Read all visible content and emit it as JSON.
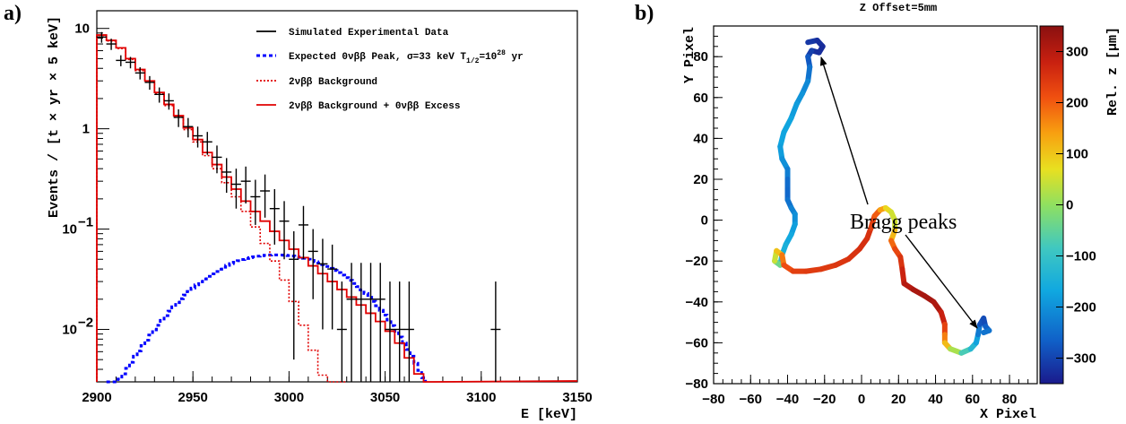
{
  "panels": {
    "a_label": "a)",
    "b_label": "b)"
  },
  "chart_data": [
    {
      "type": "line",
      "panel": "a",
      "xlabel": "E [keV]",
      "ylabel": "Events / [t × yr × 5 keV]",
      "xlim": [
        2900,
        3150
      ],
      "ylim": [
        0.003,
        15
      ],
      "yscale": "log",
      "xticks": [
        2900,
        2950,
        3000,
        3050,
        3100,
        3150
      ],
      "yticks": [
        {
          "value": 10,
          "label": "10"
        },
        {
          "value": 1,
          "label": "1"
        },
        {
          "value": 0.1,
          "label": "10",
          "exp": "−1"
        },
        {
          "value": 0.01,
          "label": "10",
          "exp": "−2"
        }
      ],
      "legend_position": "top-right",
      "legend": [
        {
          "name": "Simulated Experimental Data",
          "color": "#000000",
          "style": "solid"
        },
        {
          "name": "Expected 0νββ Peak, σ=33 keV T",
          "sub": "1/2",
          "mid": "=10",
          "sup": "28",
          "tail": " yr",
          "color": "#0000ff",
          "style": "dashed"
        },
        {
          "name": "2νββ Background",
          "color": "#e00000",
          "style": "dotted"
        },
        {
          "name": "2νββ Background + 0νββ Excess",
          "color": "#e00000",
          "style": "solid"
        }
      ],
      "series": [
        {
          "name": "2νββ Background + 0νββ Excess",
          "color": "#e00000",
          "binwidth": 5,
          "x": [
            2900,
            2905,
            2910,
            2915,
            2920,
            2925,
            2930,
            2935,
            2940,
            2945,
            2950,
            2955,
            2960,
            2965,
            2970,
            2975,
            2980,
            2985,
            2990,
            2995,
            3000,
            3005,
            3010,
            3015,
            3020,
            3025,
            3030,
            3035,
            3040,
            3045,
            3050,
            3055,
            3060,
            3065,
            3070
          ],
          "values": [
            8.6,
            7.6,
            6.4,
            5.0,
            3.9,
            3.0,
            2.3,
            1.75,
            1.35,
            1.02,
            0.78,
            0.58,
            0.44,
            0.33,
            0.25,
            0.19,
            0.15,
            0.12,
            0.095,
            0.077,
            0.063,
            0.052,
            0.043,
            0.036,
            0.03,
            0.025,
            0.021,
            0.0175,
            0.0145,
            0.012,
            0.0096,
            0.0073,
            0.0052,
            0.0036,
            0.0024
          ]
        },
        {
          "name": "2νββ Background",
          "color": "#e00000",
          "binwidth": 5,
          "x": [
            2900,
            2905,
            2910,
            2915,
            2920,
            2925,
            2930,
            2935,
            2940,
            2945,
            2950,
            2955,
            2960,
            2965,
            2970,
            2975,
            2980,
            2985,
            2990,
            2995,
            3000,
            3005,
            3010,
            3015,
            3020,
            3025
          ],
          "values": [
            8.5,
            7.5,
            6.3,
            4.9,
            3.8,
            2.95,
            2.25,
            1.7,
            1.3,
            0.98,
            0.74,
            0.54,
            0.4,
            0.29,
            0.21,
            0.15,
            0.105,
            0.072,
            0.048,
            0.031,
            0.019,
            0.011,
            0.0062,
            0.0035,
            0.0022,
            0.0012
          ]
        },
        {
          "name": "Expected 0νββ Peak",
          "color": "#0000ff",
          "binwidth": 2,
          "x": [
            2905,
            2907,
            2909,
            2911,
            2913,
            2915,
            2917,
            2919,
            2921,
            2923,
            2925,
            2927,
            2929,
            2931,
            2933,
            2935,
            2937,
            2939,
            2941,
            2943,
            2945,
            2947,
            2949,
            2951,
            2953,
            2955,
            2957,
            2959,
            2961,
            2963,
            2965,
            2967,
            2969,
            2971,
            2973,
            2975,
            2977,
            2979,
            2981,
            2983,
            2985,
            2987,
            2989,
            2991,
            2993,
            2995,
            2997,
            2999,
            3001,
            3003,
            3005,
            3007,
            3009,
            3011,
            3013,
            3015,
            3017,
            3019,
            3021,
            3023,
            3025,
            3027,
            3029,
            3031,
            3033,
            3035,
            3037,
            3039,
            3041,
            3043,
            3045,
            3047,
            3049,
            3051,
            3053,
            3055,
            3057,
            3059,
            3061,
            3063,
            3065,
            3067,
            3069
          ],
          "values": [
            0.0022,
            0.0025,
            0.0028,
            0.0032,
            0.0036,
            0.0041,
            0.0047,
            0.0054,
            0.0061,
            0.0069,
            0.0078,
            0.0088,
            0.0099,
            0.011,
            0.0123,
            0.0137,
            0.0152,
            0.0168,
            0.0185,
            0.0202,
            0.022,
            0.0239,
            0.0258,
            0.0278,
            0.0298,
            0.0318,
            0.0338,
            0.0358,
            0.0378,
            0.0398,
            0.0417,
            0.0435,
            0.0452,
            0.0468,
            0.0483,
            0.0497,
            0.0509,
            0.052,
            0.0529,
            0.0537,
            0.0543,
            0.0548,
            0.0551,
            0.0553,
            0.0553,
            0.0552,
            0.0549,
            0.0544,
            0.0538,
            0.0531,
            0.0522,
            0.0512,
            0.05,
            0.0487,
            0.0473,
            0.0458,
            0.0442,
            0.0424,
            0.0406,
            0.0387,
            0.0368,
            0.0348,
            0.0328,
            0.0308,
            0.0287,
            0.0267,
            0.0247,
            0.0228,
            0.0209,
            0.019,
            0.0172,
            0.0155,
            0.0139,
            0.0124,
            0.0109,
            0.0096,
            0.0084,
            0.0073,
            0.0063,
            0.0054,
            0.0046,
            0.0039,
            0.0033
          ]
        },
        {
          "name": "Simulated Experimental Data",
          "color": "#000000",
          "type": "errorbar",
          "x": [
            2902.5,
            2907.5,
            2912.5,
            2917.5,
            2922.5,
            2927.5,
            2932.5,
            2937.5,
            2942.5,
            2947.5,
            2952.5,
            2957.5,
            2962.5,
            2967.5,
            2972.5,
            2977.5,
            2982.5,
            2987.5,
            2992.5,
            2997.5,
            3002.5,
            3007.5,
            3012.5,
            3017.5,
            3022.5,
            3027.5,
            3032.5,
            3037.5,
            3042.5,
            3047.5,
            3052.5,
            3057.5,
            3062.5,
            3107.5
          ],
          "values": [
            8.2,
            7.0,
            4.8,
            4.6,
            3.6,
            2.9,
            2.2,
            1.9,
            1.3,
            1.05,
            0.85,
            0.74,
            0.52,
            0.37,
            0.28,
            0.3,
            0.21,
            0.24,
            0.16,
            0.12,
            0.05,
            0.11,
            0.06,
            0.045,
            0.04,
            0.01,
            0.02,
            0.02,
            0.02,
            0.02,
            0.01,
            0.01,
            0.01,
            0.01
          ],
          "err_low": [
            1.0,
            0.9,
            0.6,
            0.6,
            0.5,
            0.45,
            0.38,
            0.35,
            0.26,
            0.23,
            0.2,
            0.19,
            0.16,
            0.14,
            0.12,
            0.12,
            0.1,
            0.11,
            0.09,
            0.07,
            0.045,
            0.06,
            0.04,
            0.035,
            0.03,
            0.0095,
            0.017,
            0.017,
            0.017,
            0.017,
            0.0095,
            0.0095,
            0.0095,
            0.0095
          ],
          "err_high": [
            1.0,
            0.9,
            0.6,
            0.6,
            0.5,
            0.45,
            0.38,
            0.35,
            0.26,
            0.23,
            0.2,
            0.19,
            0.16,
            0.14,
            0.12,
            0.12,
            0.1,
            0.11,
            0.09,
            0.07,
            0.045,
            0.06,
            0.04,
            0.035,
            0.03,
            0.02,
            0.026,
            0.026,
            0.026,
            0.026,
            0.02,
            0.02,
            0.02,
            0.02
          ]
        }
      ]
    },
    {
      "type": "scatter",
      "panel": "b",
      "title": "Z Offset=5mm",
      "xlabel": "X Pixel",
      "ylabel": "Y Pixel",
      "xlim": [
        -80,
        95
      ],
      "ylim": [
        -80,
        95
      ],
      "xticks": [
        -80,
        -60,
        -40,
        -20,
        0,
        20,
        40,
        60,
        80
      ],
      "yticks": [
        -80,
        -60,
        -40,
        -20,
        0,
        20,
        40,
        60,
        80
      ],
      "colorbar": {
        "label": "Rel. z [μm]",
        "range": [
          -350,
          350
        ],
        "ticks": [
          -300,
          -200,
          -100,
          0,
          100,
          200,
          300
        ]
      },
      "annotation": "Bragg peaks",
      "track": [
        {
          "x": -29,
          "y": 87,
          "z": -310
        },
        {
          "x": -24,
          "y": 88,
          "z": -320
        },
        {
          "x": -21,
          "y": 85,
          "z": -330
        },
        {
          "x": -23,
          "y": 82,
          "z": -330
        },
        {
          "x": -27,
          "y": 83,
          "z": -320
        },
        {
          "x": -29,
          "y": 80,
          "z": -290
        },
        {
          "x": -28,
          "y": 75,
          "z": -260
        },
        {
          "x": -29,
          "y": 68,
          "z": -220
        },
        {
          "x": -32,
          "y": 62,
          "z": -200
        },
        {
          "x": -35,
          "y": 57,
          "z": -190
        },
        {
          "x": -38,
          "y": 50,
          "z": -175
        },
        {
          "x": -42,
          "y": 43,
          "z": -170
        },
        {
          "x": -44,
          "y": 36,
          "z": -175
        },
        {
          "x": -43,
          "y": 30,
          "z": -190
        },
        {
          "x": -40,
          "y": 25,
          "z": -210
        },
        {
          "x": -40,
          "y": 20,
          "z": -240
        },
        {
          "x": -40,
          "y": 15,
          "z": -260
        },
        {
          "x": -40,
          "y": 10,
          "z": -250
        },
        {
          "x": -38,
          "y": 6,
          "z": -230
        },
        {
          "x": -36,
          "y": 3,
          "z": -210
        },
        {
          "x": -36,
          "y": -2,
          "z": -190
        },
        {
          "x": -38,
          "y": -7,
          "z": -170
        },
        {
          "x": -41,
          "y": -12,
          "z": -160
        },
        {
          "x": -43,
          "y": -17,
          "z": -140
        },
        {
          "x": -44,
          "y": -22,
          "z": -100
        },
        {
          "x": -47,
          "y": -20,
          "z": 30
        },
        {
          "x": -46,
          "y": -15,
          "z": 60
        },
        {
          "x": -43,
          "y": -17,
          "z": 150
        },
        {
          "x": -42,
          "y": -22,
          "z": 200
        },
        {
          "x": -37,
          "y": -25,
          "z": 230
        },
        {
          "x": -30,
          "y": -25,
          "z": 240
        },
        {
          "x": -22,
          "y": -24,
          "z": 240
        },
        {
          "x": -14,
          "y": -22,
          "z": 245
        },
        {
          "x": -7,
          "y": -19,
          "z": 250
        },
        {
          "x": -1,
          "y": -14,
          "z": 255
        },
        {
          "x": 3,
          "y": -9,
          "z": 260
        },
        {
          "x": 5,
          "y": -4,
          "z": 250
        },
        {
          "x": 7,
          "y": 2,
          "z": 220
        },
        {
          "x": 10,
          "y": 5,
          "z": 180
        },
        {
          "x": 13,
          "y": 6,
          "z": 100
        },
        {
          "x": 16,
          "y": 4,
          "z": 60
        },
        {
          "x": 18,
          "y": 0,
          "z": 40
        },
        {
          "x": 18,
          "y": -5,
          "z": 60
        },
        {
          "x": 16,
          "y": -10,
          "z": 170
        },
        {
          "x": 18,
          "y": -14,
          "z": 210
        },
        {
          "x": 21,
          "y": -18,
          "z": 240
        },
        {
          "x": 22,
          "y": -24,
          "z": 260
        },
        {
          "x": 23,
          "y": -31,
          "z": 290
        },
        {
          "x": 28,
          "y": -34,
          "z": 310
        },
        {
          "x": 34,
          "y": -37,
          "z": 320
        },
        {
          "x": 39,
          "y": -40,
          "z": 320
        },
        {
          "x": 43,
          "y": -45,
          "z": 300
        },
        {
          "x": 45,
          "y": -51,
          "z": 260
        },
        {
          "x": 45,
          "y": -56,
          "z": 200
        },
        {
          "x": 45,
          "y": -60,
          "z": 140
        },
        {
          "x": 48,
          "y": -63,
          "z": 80
        },
        {
          "x": 54,
          "y": -65,
          "z": -40
        },
        {
          "x": 59,
          "y": -63,
          "z": -110
        },
        {
          "x": 62,
          "y": -60,
          "z": -150
        },
        {
          "x": 63,
          "y": -56,
          "z": -200
        },
        {
          "x": 64,
          "y": -51,
          "z": -260
        },
        {
          "x": 66,
          "y": -48,
          "z": -300
        },
        {
          "x": 67,
          "y": -52,
          "z": -280
        },
        {
          "x": 69,
          "y": -54,
          "z": -250
        },
        {
          "x": 66,
          "y": -55,
          "z": -230
        }
      ]
    }
  ]
}
